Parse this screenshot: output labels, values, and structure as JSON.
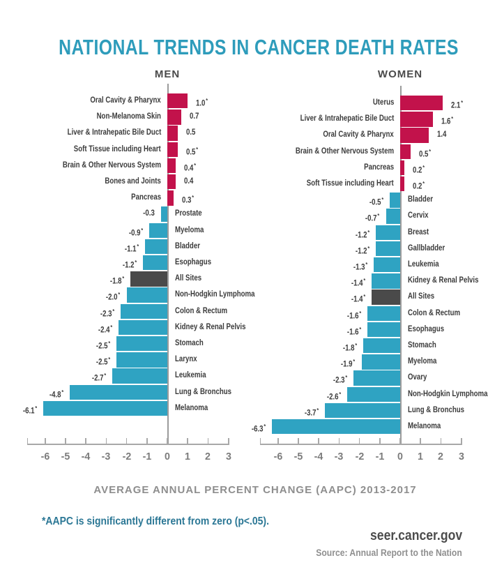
{
  "page_title": "NATIONAL TRENDS IN CANCER DEATH RATES",
  "axis_label": "AVERAGE ANNUAL PERCENT CHANGE (AAPC) 2013-2017",
  "footnote": "*AAPC is significantly different from zero (p<.05).",
  "source": {
    "site": "seer.cancer.gov",
    "attribution": "Source: Annual Report to the Nation"
  },
  "colors": {
    "title": "#2E9CBB",
    "increase_bar": "#C2124B",
    "decrease_bar": "#2FA3C2",
    "all_sites_bar": "#4A4A4A",
    "label_text": "#3B3B3B",
    "group_header_text": "#4A4A4A",
    "axis": "#A8A8A8",
    "zero_line": "#9B9B9B",
    "tick_label": "#7C7C7C",
    "axis_label_text": "#8E8E8E",
    "footnote_text": "#2B7795",
    "source_site_text": "#4D4D4D",
    "source_attribution_text": "#8F8F8F"
  },
  "chart_data": [
    {
      "type": "bar",
      "orientation": "horizontal",
      "title": "MEN",
      "xlabel": "AVERAGE ANNUAL PERCENT CHANGE (AAPC) 2013-2017",
      "xticks": [
        -6,
        -5,
        -4,
        -3,
        -2,
        -1,
        0,
        1,
        2,
        3
      ],
      "xlim": [
        -6.9,
        3.05
      ],
      "bars": [
        {
          "category": "Oral Cavity & Pharynx",
          "value": 1.0,
          "significant": true
        },
        {
          "category": "Non-Melanoma Skin",
          "value": 0.7,
          "significant": false
        },
        {
          "category": "Liver & Intrahepatic Bile Duct",
          "value": 0.5,
          "significant": false
        },
        {
          "category": "Soft Tissue including Heart",
          "value": 0.5,
          "significant": true
        },
        {
          "category": "Brain & Other Nervous System",
          "value": 0.4,
          "significant": true
        },
        {
          "category": "Bones and Joints",
          "value": 0.4,
          "significant": false
        },
        {
          "category": "Pancreas",
          "value": 0.3,
          "significant": true
        },
        {
          "category": "Prostate",
          "value": -0.3,
          "significant": false
        },
        {
          "category": "Myeloma",
          "value": -0.9,
          "significant": true
        },
        {
          "category": "Bladder",
          "value": -1.1,
          "significant": true
        },
        {
          "category": "Esophagus",
          "value": -1.2,
          "significant": true
        },
        {
          "category": "All Sites",
          "value": -1.8,
          "significant": true,
          "highlight": true
        },
        {
          "category": "Non-Hodgkin Lymphoma",
          "value": -2.0,
          "significant": true
        },
        {
          "category": "Colon & Rectum",
          "value": -2.3,
          "significant": true
        },
        {
          "category": "Kidney & Renal Pelvis",
          "value": -2.4,
          "significant": true
        },
        {
          "category": "Stomach",
          "value": -2.5,
          "significant": true
        },
        {
          "category": "Larynx",
          "value": -2.5,
          "significant": true
        },
        {
          "category": "Leukemia",
          "value": -2.7,
          "significant": true
        },
        {
          "category": "Lung & Bronchus",
          "value": -4.8,
          "significant": true
        },
        {
          "category": "Melanoma",
          "value": -6.1,
          "significant": true
        }
      ]
    },
    {
      "type": "bar",
      "orientation": "horizontal",
      "title": "WOMEN",
      "xlabel": "AVERAGE ANNUAL PERCENT CHANGE (AAPC) 2013-2017",
      "xticks": [
        -6,
        -5,
        -4,
        -3,
        -2,
        -1,
        0,
        1,
        2,
        3
      ],
      "xlim": [
        -6.9,
        3.05
      ],
      "bars": [
        {
          "category": "Uterus",
          "value": 2.1,
          "significant": true
        },
        {
          "category": "Liver & Intrahepatic Bile Duct",
          "value": 1.6,
          "significant": true
        },
        {
          "category": "Oral Cavity & Pharynx",
          "value": 1.4,
          "significant": false
        },
        {
          "category": "Brain & Other Nervous System",
          "value": 0.5,
          "significant": true
        },
        {
          "category": "Pancreas",
          "value": 0.2,
          "significant": true
        },
        {
          "category": "Soft Tissue including Heart",
          "value": 0.2,
          "significant": true
        },
        {
          "category": "Bladder",
          "value": -0.5,
          "significant": true
        },
        {
          "category": "Cervix",
          "value": -0.7,
          "significant": true
        },
        {
          "category": "Breast",
          "value": -1.2,
          "significant": true
        },
        {
          "category": "Gallbladder",
          "value": -1.2,
          "significant": true
        },
        {
          "category": "Leukemia",
          "value": -1.3,
          "significant": true
        },
        {
          "category": "Kidney & Renal Pelvis",
          "value": -1.4,
          "significant": true
        },
        {
          "category": "All Sites",
          "value": -1.4,
          "significant": true,
          "highlight": true
        },
        {
          "category": "Colon & Rectum",
          "value": -1.6,
          "significant": true
        },
        {
          "category": "Esophagus",
          "value": -1.6,
          "significant": true
        },
        {
          "category": "Stomach",
          "value": -1.8,
          "significant": true
        },
        {
          "category": "Myeloma",
          "value": -1.9,
          "significant": true
        },
        {
          "category": "Ovary",
          "value": -2.3,
          "significant": true
        },
        {
          "category": "Non-Hodgkin Lymphoma",
          "value": -2.6,
          "significant": true
        },
        {
          "category": "Lung & Bronchus",
          "value": -3.7,
          "significant": true
        },
        {
          "category": "Melanoma",
          "value": -6.3,
          "significant": true
        }
      ]
    }
  ]
}
